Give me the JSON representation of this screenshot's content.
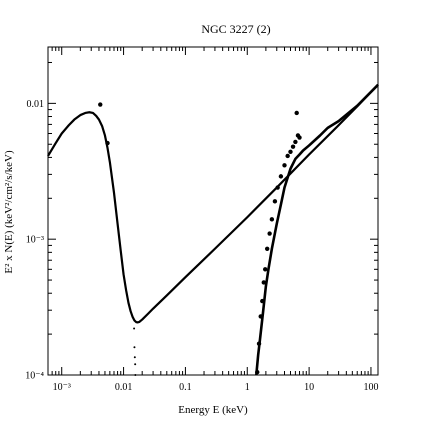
{
  "chart_data": {
    "type": "scatter",
    "title": "NGC 3227 (2)",
    "xlabel": "Energy E (keV)",
    "ylabel": "E² x N(E) (keV²/cm²/s/keV)",
    "xscale": "log",
    "yscale": "log",
    "xlim": [
      0.0006,
      130
    ],
    "ylim": [
      0.0001,
      0.026
    ],
    "grid": false,
    "x_major_ticks": [
      {
        "value": 0.001,
        "label": "10⁻³"
      },
      {
        "value": 0.01,
        "label": "0.01"
      },
      {
        "value": 0.1,
        "label": "0.1"
      },
      {
        "value": 1,
        "label": "1"
      },
      {
        "value": 10,
        "label": "10"
      },
      {
        "value": 100,
        "label": "100"
      }
    ],
    "y_major_ticks": [
      {
        "value": 0.0001,
        "label": "10⁻⁴"
      },
      {
        "value": 0.001,
        "label": "10⁻³"
      },
      {
        "value": 0.01,
        "label": "0.01"
      }
    ],
    "series": [
      {
        "style": "model-curve",
        "color": "#000000",
        "x": [
          0.0006,
          0.0008,
          0.001,
          0.0013,
          0.0016,
          0.002,
          0.0024,
          0.0028,
          0.0032,
          0.0036,
          0.004,
          0.0045,
          0.005,
          0.0055,
          0.006,
          0.007,
          0.008,
          0.009,
          0.01,
          0.011,
          0.012,
          0.013,
          0.014,
          0.015,
          0.016,
          0.017,
          0.018,
          0.02,
          0.025,
          0.03,
          0.05,
          0.1,
          0.3,
          1,
          3,
          10,
          30,
          60,
          130
        ],
        "y": [
          0.0041,
          0.0051,
          0.006,
          0.0069,
          0.0076,
          0.0082,
          0.0085,
          0.0086,
          0.0085,
          0.0081,
          0.0076,
          0.0068,
          0.0058,
          0.0047,
          0.0037,
          0.0022,
          0.0013,
          0.00082,
          0.00055,
          0.00042,
          0.00034,
          0.000295,
          0.000268,
          0.000252,
          0.000245,
          0.000244,
          0.000246,
          0.000256,
          0.000283,
          0.000308,
          0.000385,
          0.000525,
          0.00085,
          0.00145,
          0.0024,
          0.0042,
          0.0069,
          0.0095,
          0.0137
        ]
      },
      {
        "style": "absorbed-curve",
        "color": "#000000",
        "x": [
          1.4,
          1.5,
          1.6,
          1.8,
          2.0,
          2.2,
          2.5,
          3.0,
          3.5,
          4.0,
          5.0,
          6.0,
          7.0,
          8.0,
          10,
          15,
          20,
          30,
          60,
          130
        ],
        "y": [
          0.0001,
          0.00014,
          0.00018,
          0.00029,
          0.00045,
          0.0006,
          0.00085,
          0.0013,
          0.0018,
          0.0024,
          0.0033,
          0.0039,
          0.0042,
          0.0045,
          0.0049,
          0.0058,
          0.0066,
          0.0074,
          0.0096,
          0.0137
        ]
      },
      {
        "style": "dotted-drop",
        "color": "#000000",
        "x": [
          0.0148,
          0.015,
          0.0152,
          0.0154,
          0.0155
        ],
        "y": [
          0.00022,
          0.00016,
          0.000135,
          0.00012,
          0.0001
        ]
      },
      {
        "style": "data-points",
        "color": "#000000",
        "x": [
          0.0042,
          0.0055,
          1.45,
          1.55,
          1.65,
          1.75,
          1.85,
          1.95,
          2.1,
          2.3,
          2.5,
          2.8,
          3.1,
          3.5,
          4.0,
          4.5,
          5.0,
          5.5,
          6.0,
          6.3,
          6.6,
          7.0
        ],
        "y": [
          0.0098,
          0.0051,
          0.000105,
          0.00017,
          0.00027,
          0.00035,
          0.00048,
          0.0006,
          0.00085,
          0.0011,
          0.0014,
          0.0019,
          0.0024,
          0.0029,
          0.0035,
          0.0041,
          0.0044,
          0.0048,
          0.0052,
          0.0085,
          0.0058,
          0.0056
        ]
      }
    ]
  }
}
